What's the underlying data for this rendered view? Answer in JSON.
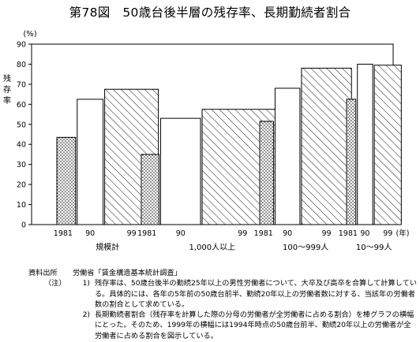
{
  "title": "第78図　50歳台後半層の残存率、長期勤続者割合",
  "chart_data": {
    "type": "bar",
    "y_unit": "(%)",
    "x_unit": "(年)",
    "ylabel": "残存率",
    "ylim": [
      0,
      90
    ],
    "yticks": [
      0,
      10,
      20,
      30,
      40,
      50,
      60,
      70,
      80,
      90
    ],
    "grid": false,
    "years": [
      "1981",
      "90",
      "99"
    ],
    "groups": [
      {
        "name": "規模計",
        "values": [
          43.5,
          62.5,
          67.5
        ],
        "widths": [
          7.1,
          9.8,
          20.3
        ]
      },
      {
        "name": "1,000人以上",
        "values": [
          35,
          53,
          57.5
        ],
        "widths": [
          6.7,
          15.1,
          30.6
        ]
      },
      {
        "name": "100～999人",
        "values": [
          51.5,
          68,
          78
        ],
        "widths": [
          5.2,
          9.4,
          18.9
        ]
      },
      {
        "name": "10～99人",
        "values": [
          62.5,
          80,
          79.5
        ],
        "widths": [
          3.5,
          5.8,
          10.2
        ]
      }
    ],
    "fills": [
      "dots",
      "white",
      "hatch"
    ]
  },
  "notes": {
    "source_key": "資料出所",
    "source_text": "労働省「賃金構造基本統計調査」",
    "note_key": "（注）",
    "items": [
      {
        "num": "1)",
        "text": "残存率は、50歳台後半の勤続25年以上の男性労働者について、大卒及び高卒を合算して計算している。具体的には、各年の5年前の50歳台前半、勤続20年以上の労働者数に対する、当該年の労働者数の割合として求めている。"
      },
      {
        "num": "2)",
        "text": "長期勤続者割合（残存率を計算した際の分母の労働者が全労働者に占める割合）を棒グラフの横幅にとった。そのため、1999年の横幅には1994年時点の50歳台前半、勤続20年以上の労働者が全労働者に占める割合を図示している。"
      }
    ]
  }
}
